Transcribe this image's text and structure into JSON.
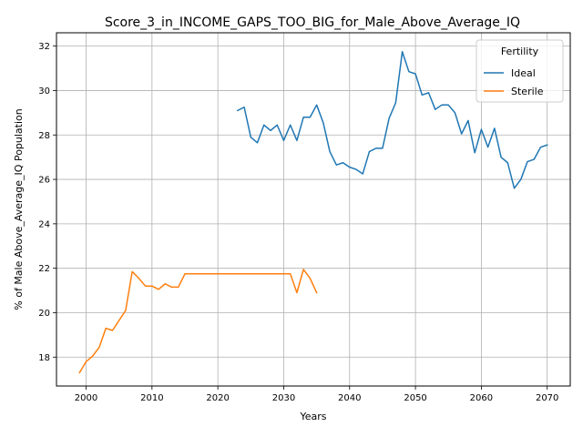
{
  "chart_data": {
    "type": "line",
    "title": "Score_3_in_INCOME_GAPS_TOO_BIG_for_Male_Above_Average_IQ",
    "xlabel": "Years",
    "ylabel": "% of Male Above_Average_IQ Population",
    "xlim": [
      1995.5,
      2073.5
    ],
    "ylim": [
      16.7,
      32.6
    ],
    "xticks": [
      2000,
      2010,
      2020,
      2030,
      2040,
      2050,
      2060,
      2070
    ],
    "yticks": [
      18,
      20,
      22,
      24,
      26,
      28,
      30,
      32
    ],
    "grid": true,
    "legend": {
      "title": "Fertility",
      "position": "top-right"
    },
    "series": [
      {
        "name": "Ideal",
        "color": "#1f77b4",
        "x": [
          2023,
          2024,
          2025,
          2026,
          2027,
          2028,
          2029,
          2030,
          2031,
          2032,
          2033,
          2034,
          2035,
          2036,
          2037,
          2038,
          2039,
          2040,
          2041,
          2042,
          2043,
          2044,
          2045,
          2046,
          2047,
          2048,
          2049,
          2050,
          2051,
          2052,
          2053,
          2054,
          2055,
          2056,
          2057,
          2058,
          2059,
          2060,
          2061,
          2062,
          2063,
          2064,
          2065,
          2066,
          2067,
          2068,
          2069,
          2070
        ],
        "y": [
          29.1,
          29.25,
          27.9,
          27.65,
          28.45,
          28.2,
          28.45,
          27.75,
          28.45,
          27.75,
          28.8,
          28.8,
          29.35,
          28.55,
          27.25,
          26.65,
          26.75,
          26.55,
          26.45,
          26.25,
          27.25,
          27.4,
          27.4,
          28.75,
          29.45,
          31.75,
          30.85,
          30.75,
          29.8,
          29.9,
          29.15,
          29.35,
          29.35,
          29.0,
          28.05,
          28.65,
          27.2,
          28.25,
          27.45,
          28.3,
          27.0,
          26.75,
          25.6,
          26.0,
          26.8,
          26.9,
          27.45,
          27.55
        ]
      },
      {
        "name": "Sterile",
        "color": "#ff7f0e",
        "x": [
          1999,
          2000,
          2001,
          2002,
          2003,
          2004,
          2005,
          2006,
          2007,
          2008,
          2009,
          2010,
          2011,
          2012,
          2013,
          2014,
          2015,
          2016,
          2017,
          2018,
          2019,
          2020,
          2021,
          2022,
          2023,
          2024,
          2025,
          2026,
          2027,
          2028,
          2029,
          2030,
          2031,
          2032,
          2033,
          2034,
          2035
        ],
        "y": [
          17.3,
          17.8,
          18.05,
          18.45,
          19.3,
          19.2,
          19.65,
          20.1,
          21.85,
          21.55,
          21.2,
          21.2,
          21.05,
          21.3,
          21.15,
          21.15,
          21.75,
          21.75,
          21.75,
          21.75,
          21.75,
          21.75,
          21.75,
          21.75,
          21.75,
          21.75,
          21.75,
          21.75,
          21.75,
          21.75,
          21.75,
          21.75,
          21.75,
          20.9,
          21.95,
          21.55,
          20.9
        ]
      }
    ]
  }
}
